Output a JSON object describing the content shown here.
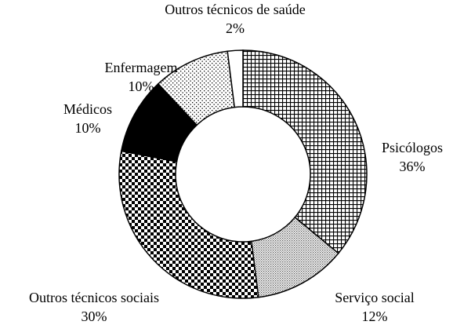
{
  "chart_data": {
    "type": "donut",
    "categories": [
      "Psicólogos",
      "Serviço social",
      "Outros técnicos sociais",
      "Médicos",
      "Enfermagem",
      "Outros técnicos de saúde"
    ],
    "values": [
      36,
      12,
      30,
      10,
      10,
      2
    ],
    "value_labels": [
      "36%",
      "12%",
      "30%",
      "10%",
      "10%",
      "2%"
    ]
  }
}
